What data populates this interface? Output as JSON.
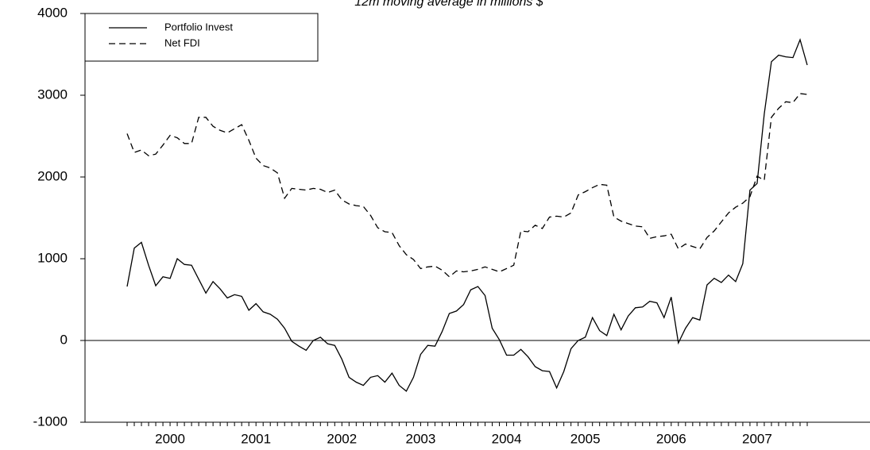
{
  "chart_data": {
    "type": "line",
    "title": "12m moving average in millions $",
    "categories": [
      null,
      null,
      null,
      null,
      null,
      null,
      "2000",
      null,
      null,
      null,
      null,
      null,
      null,
      null,
      null,
      null,
      null,
      null,
      "2001",
      null,
      null,
      null,
      null,
      null,
      null,
      null,
      null,
      null,
      null,
      null,
      "2002",
      null,
      null,
      null,
      null,
      null,
      null,
      null,
      null,
      null,
      null,
      "2003",
      null,
      null,
      null,
      null,
      null,
      null,
      null,
      null,
      null,
      null,
      null,
      "2004",
      null,
      null,
      null,
      null,
      null,
      null,
      null,
      null,
      null,
      null,
      "2005",
      null,
      null,
      null,
      null,
      null,
      null,
      null,
      null,
      null,
      null,
      null,
      "2006",
      null,
      null,
      null,
      null,
      null,
      null,
      null,
      null,
      null,
      null,
      null,
      "2007",
      null,
      null,
      null,
      null,
      null,
      null,
      null
    ],
    "series": [
      {
        "name": "Portfolio Invest",
        "color": "#000000",
        "line_style": "solid",
        "values": [
          660,
          1130,
          1200,
          920,
          670,
          780,
          760,
          1000,
          930,
          920,
          750,
          580,
          720,
          630,
          520,
          560,
          540,
          370,
          450,
          350,
          320,
          260,
          150,
          -10,
          -70,
          -120,
          0,
          40,
          -40,
          -60,
          -230,
          -450,
          -510,
          -550,
          -450,
          -430,
          -510,
          -400,
          -550,
          -620,
          -450,
          -170,
          -60,
          -70,
          110,
          330,
          360,
          440,
          620,
          660,
          550,
          150,
          10,
          -180,
          -180,
          -110,
          -200,
          -320,
          -370,
          -380,
          -580,
          -380,
          -100,
          0,
          40,
          280,
          120,
          60,
          320,
          130,
          300,
          400,
          410,
          480,
          460,
          280,
          530,
          -30,
          150,
          280,
          250,
          680,
          760,
          710,
          800,
          720,
          940,
          1840,
          1920,
          2770,
          3410,
          3490,
          3470,
          3460,
          3680,
          3370
        ]
      },
      {
        "name": "Net FDI",
        "color": "#000000",
        "line_style": "dashed",
        "values": [
          2530,
          2300,
          2330,
          2260,
          2280,
          2390,
          2510,
          2480,
          2410,
          2410,
          2730,
          2730,
          2620,
          2570,
          2540,
          2590,
          2640,
          2450,
          2230,
          2140,
          2110,
          2050,
          1740,
          1860,
          1850,
          1840,
          1860,
          1850,
          1810,
          1840,
          1720,
          1670,
          1650,
          1640,
          1530,
          1380,
          1330,
          1320,
          1160,
          1050,
          990,
          880,
          900,
          910,
          860,
          780,
          850,
          840,
          850,
          870,
          900,
          870,
          840,
          880,
          920,
          1340,
          1330,
          1410,
          1370,
          1510,
          1520,
          1510,
          1560,
          1780,
          1820,
          1870,
          1910,
          1900,
          1510,
          1460,
          1430,
          1400,
          1390,
          1250,
          1270,
          1280,
          1300,
          1120,
          1180,
          1150,
          1120,
          1260,
          1340,
          1450,
          1560,
          1630,
          1680,
          1760,
          2010,
          1960,
          2730,
          2840,
          2920,
          2910,
          3020,
          3010
        ]
      }
    ],
    "ylim": [
      -1000,
      4000
    ],
    "yticks": [
      -1000,
      0,
      1000,
      2000,
      3000,
      4000
    ],
    "zero_line": true,
    "legend": "top-left"
  }
}
